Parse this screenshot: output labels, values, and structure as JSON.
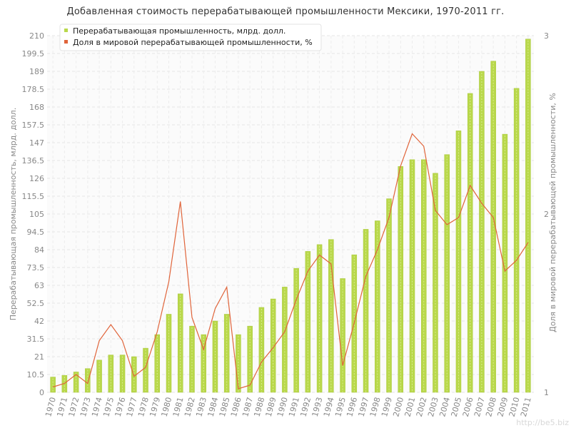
{
  "chart_data": {
    "type": "bar",
    "title": "Добавленная стоимость перерабатывающей промышленности Мексики, 1970-2011 гг.",
    "ylabel": "Перерабатывающая промышленность, млрд. долл.",
    "y2label": "Доля в мировой перерабатывающей промышленности, %",
    "ylim": [
      0,
      210
    ],
    "y2lim": [
      1,
      3
    ],
    "yticks": [
      "0",
      "10.5",
      "21",
      "31.5",
      "42",
      "52.5",
      "63",
      "73.5",
      "84",
      "94.5",
      "105",
      "115.5",
      "126",
      "136.5",
      "147",
      "157.5",
      "168",
      "178.5",
      "189",
      "199.5",
      "210"
    ],
    "y2ticks": [
      "1",
      "2",
      "3"
    ],
    "categories": [
      "1970",
      "1971",
      "1972",
      "1973",
      "1974",
      "1975",
      "1976",
      "1977",
      "1978",
      "1979",
      "1980",
      "1981",
      "1982",
      "1983",
      "1984",
      "1985",
      "1986",
      "1987",
      "1988",
      "1989",
      "1990",
      "1991",
      "1992",
      "1993",
      "1994",
      "1995",
      "1996",
      "1997",
      "1998",
      "1999",
      "2000",
      "2001",
      "2002",
      "2003",
      "2004",
      "2005",
      "2006",
      "2007",
      "2008",
      "2009",
      "2010",
      "2011"
    ],
    "series": [
      {
        "name": "Перерабатывающая промышленность, млрд. долл.",
        "kind": "bar",
        "axis": "left",
        "color": "#b9d84b",
        "values": [
          9,
          10,
          12,
          14,
          19,
          22,
          22,
          21,
          26,
          34,
          46,
          58,
          39,
          34,
          42,
          46,
          34,
          39,
          50,
          55,
          62,
          73,
          83,
          87,
          90,
          67,
          81,
          96,
          101,
          114,
          133,
          137,
          137,
          129,
          140,
          154,
          176,
          189,
          195,
          152,
          179,
          208
        ]
      },
      {
        "name": "Доля в мировой перерабатывающей промышленности, %",
        "kind": "line",
        "axis": "right",
        "color": "#e0643a",
        "values": [
          1.03,
          1.05,
          1.1,
          1.05,
          1.29,
          1.38,
          1.29,
          1.09,
          1.14,
          1.34,
          1.62,
          2.07,
          1.42,
          1.24,
          1.47,
          1.59,
          1.02,
          1.04,
          1.17,
          1.25,
          1.34,
          1.52,
          1.68,
          1.77,
          1.72,
          1.15,
          1.39,
          1.65,
          1.8,
          1.98,
          2.27,
          2.45,
          2.38,
          2.02,
          1.94,
          1.98,
          2.16,
          2.06,
          1.98,
          1.68,
          1.74,
          1.84
        ]
      }
    ],
    "grid": true,
    "legend": "top-left"
  },
  "watermark": "http://be5.biz"
}
